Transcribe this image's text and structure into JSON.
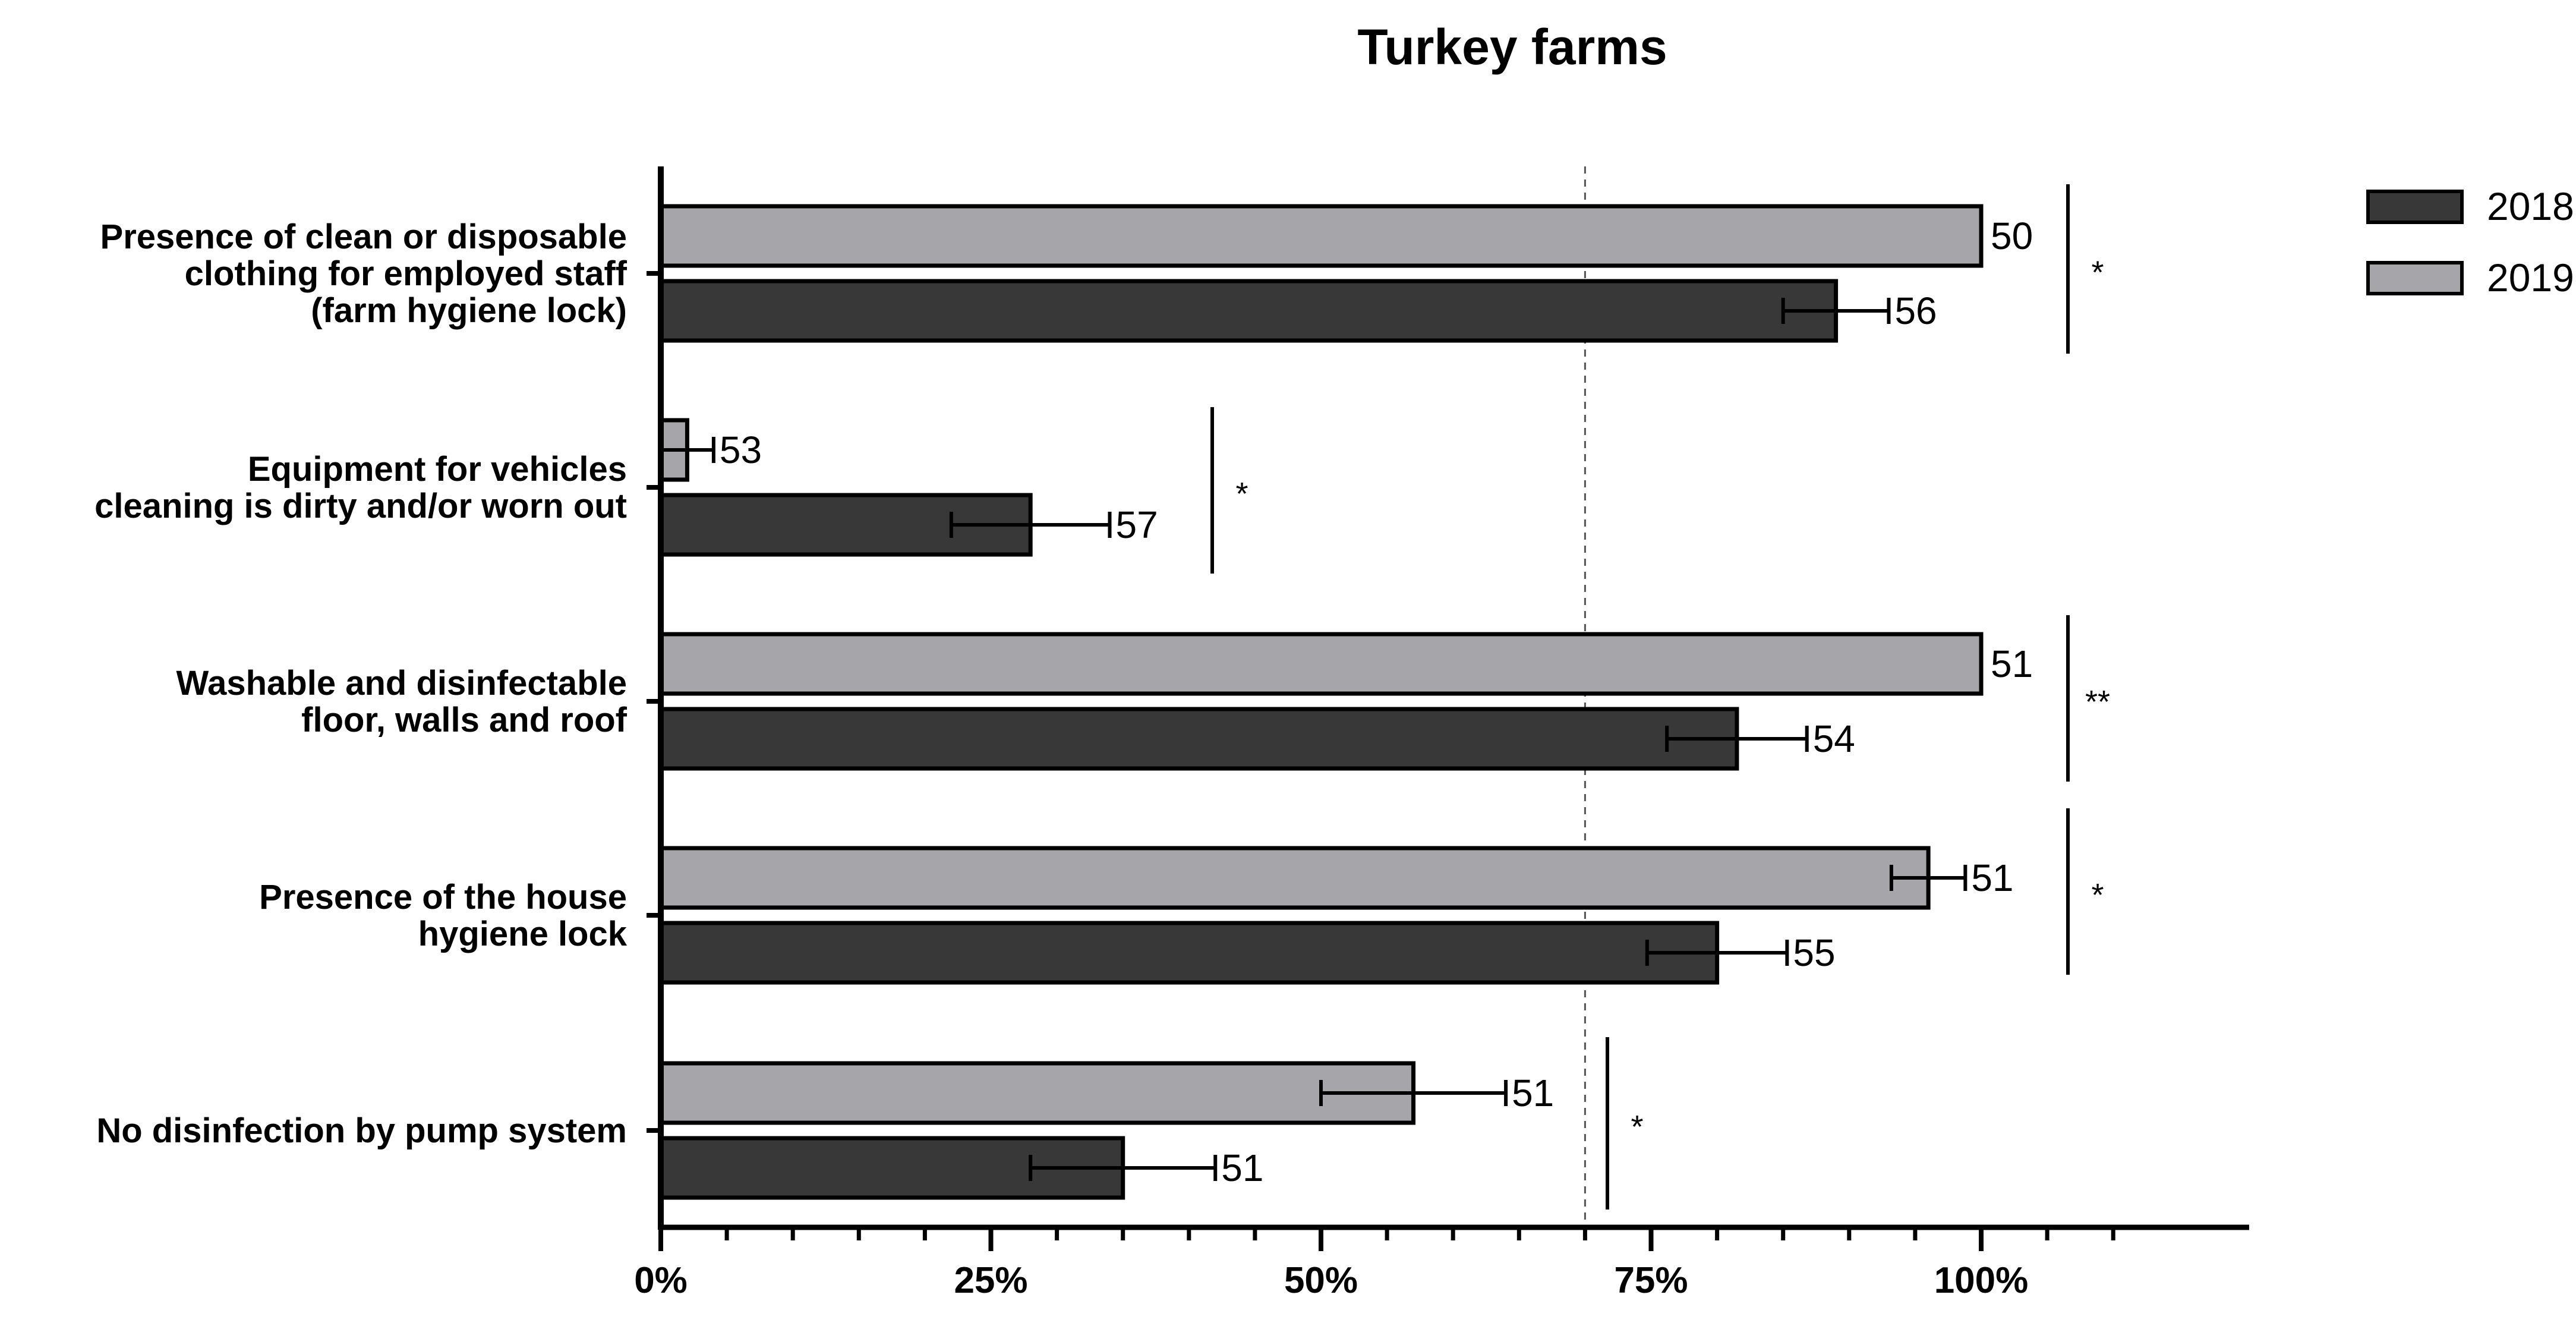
{
  "chart_data": {
    "type": "bar",
    "orientation": "horizontal",
    "title": "Turkey farms",
    "xlabel": "",
    "ylabel": "",
    "xlim": [
      0,
      120
    ],
    "x_tick_values": [
      0,
      25,
      50,
      75,
      100
    ],
    "x_tick_labels": [
      "0%",
      "25%",
      "50%",
      "75%",
      "100%"
    ],
    "reference_line": 70,
    "legend_position": "top-right",
    "categories": [
      {
        "lines": [
          "Presence of clean or disposable",
          "clothing for employed staff",
          "(farm hygiene lock)"
        ]
      },
      {
        "lines": [
          "Equipment for vehicles",
          "cleaning is dirty and/or worn out"
        ]
      },
      {
        "lines": [
          "Washable and disinfectable",
          "floor, walls and roof"
        ]
      },
      {
        "lines": [
          "Presence of the house",
          "hygiene lock"
        ]
      },
      {
        "lines": [
          "No disinfection by pump system"
        ]
      }
    ],
    "series": [
      {
        "name": "2019",
        "color": "#a6a5aa",
        "values": [
          100,
          2,
          100,
          96,
          57
        ],
        "error": [
          null,
          2,
          null,
          2.8,
          7
        ],
        "n": [
          "50",
          "53",
          "51",
          "51",
          "51"
        ]
      },
      {
        "name": "2018",
        "color": "#383838",
        "values": [
          89,
          28,
          81.5,
          80,
          35
        ],
        "error": [
          4,
          6,
          5.3,
          5.3,
          7
        ],
        "n": [
          "56",
          "57",
          "54",
          "55",
          "51"
        ]
      }
    ],
    "significance": [
      "*",
      "*",
      "**",
      "*",
      "*"
    ]
  }
}
